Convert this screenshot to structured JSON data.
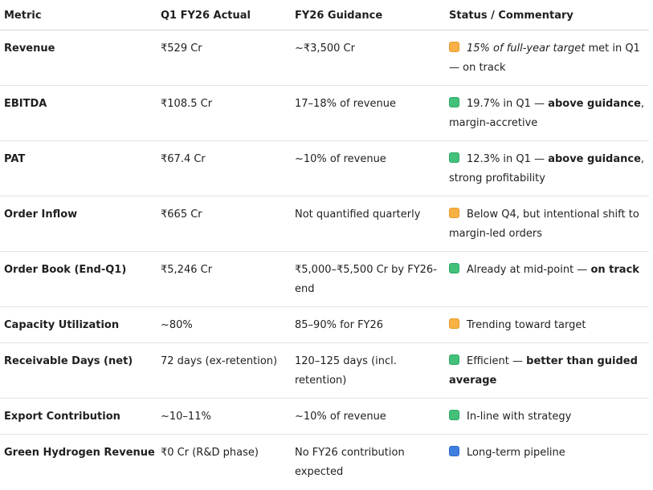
{
  "headers": {
    "metric": "Metric",
    "actual": "Q1 FY26 Actual",
    "guidance": "FY26 Guidance",
    "status": "Status / Commentary"
  },
  "rows": [
    {
      "metric": "Revenue",
      "actual": "₹529 Cr",
      "guidance": "~₹3,500 Cr",
      "status_color": "orange",
      "status_icon": "orange-square-icon",
      "status_parts": [
        {
          "text": "15% of full-year target",
          "style": "em"
        },
        {
          "text": " met in Q1 — on track",
          "style": "plain"
        }
      ]
    },
    {
      "metric": "EBITDA",
      "actual": "₹108.5 Cr",
      "guidance": "17–18% of revenue",
      "status_color": "green",
      "status_icon": "green-square-icon",
      "status_parts": [
        {
          "text": "19.7% in Q1 — ",
          "style": "plain"
        },
        {
          "text": "above guidance",
          "style": "strong"
        },
        {
          "text": ", margin-accretive",
          "style": "plain"
        }
      ]
    },
    {
      "metric": "PAT",
      "actual": "₹67.4 Cr",
      "guidance": "~10% of revenue",
      "status_color": "green",
      "status_icon": "green-square-icon",
      "status_parts": [
        {
          "text": "12.3% in Q1 — ",
          "style": "plain"
        },
        {
          "text": "above guidance",
          "style": "strong"
        },
        {
          "text": ", strong profitability",
          "style": "plain"
        }
      ]
    },
    {
      "metric": "Order Inflow",
      "actual": "₹665 Cr",
      "guidance": "Not quantified quarterly",
      "status_color": "orange",
      "status_icon": "orange-square-icon",
      "status_parts": [
        {
          "text": "Below Q4, but intentional shift to margin-led orders",
          "style": "plain"
        }
      ]
    },
    {
      "metric": "Order Book (End-Q1)",
      "actual": "₹5,246 Cr",
      "guidance": "₹5,000–₹5,500 Cr by FY26-end",
      "status_color": "green",
      "status_icon": "green-square-icon",
      "status_parts": [
        {
          "text": "Already at mid-point — ",
          "style": "plain"
        },
        {
          "text": "on track",
          "style": "strong"
        }
      ]
    },
    {
      "metric": "Capacity Utilization",
      "actual": "~80%",
      "guidance": "85–90% for FY26",
      "status_color": "orange",
      "status_icon": "orange-square-icon",
      "status_parts": [
        {
          "text": "Trending toward target",
          "style": "plain"
        }
      ]
    },
    {
      "metric": "Receivable Days (net)",
      "actual": "72 days (ex-retention)",
      "guidance": "120–125 days (incl. retention)",
      "status_color": "green",
      "status_icon": "green-square-icon",
      "status_parts": [
        {
          "text": "Efficient — ",
          "style": "plain"
        },
        {
          "text": "better than guided average",
          "style": "strong"
        }
      ]
    },
    {
      "metric": "Export Contribution",
      "actual": "~10–11%",
      "guidance": "~10% of revenue",
      "status_color": "green",
      "status_icon": "green-square-icon",
      "status_parts": [
        {
          "text": "In-line with strategy",
          "style": "plain"
        }
      ]
    },
    {
      "metric": "Green Hydrogen Revenue",
      "actual": "₹0 Cr (R&D phase)",
      "guidance": "No FY26 contribution expected",
      "status_color": "blue",
      "status_icon": "blue-square-icon",
      "status_parts": [
        {
          "text": "Long-term pipeline",
          "style": "plain"
        }
      ]
    }
  ]
}
